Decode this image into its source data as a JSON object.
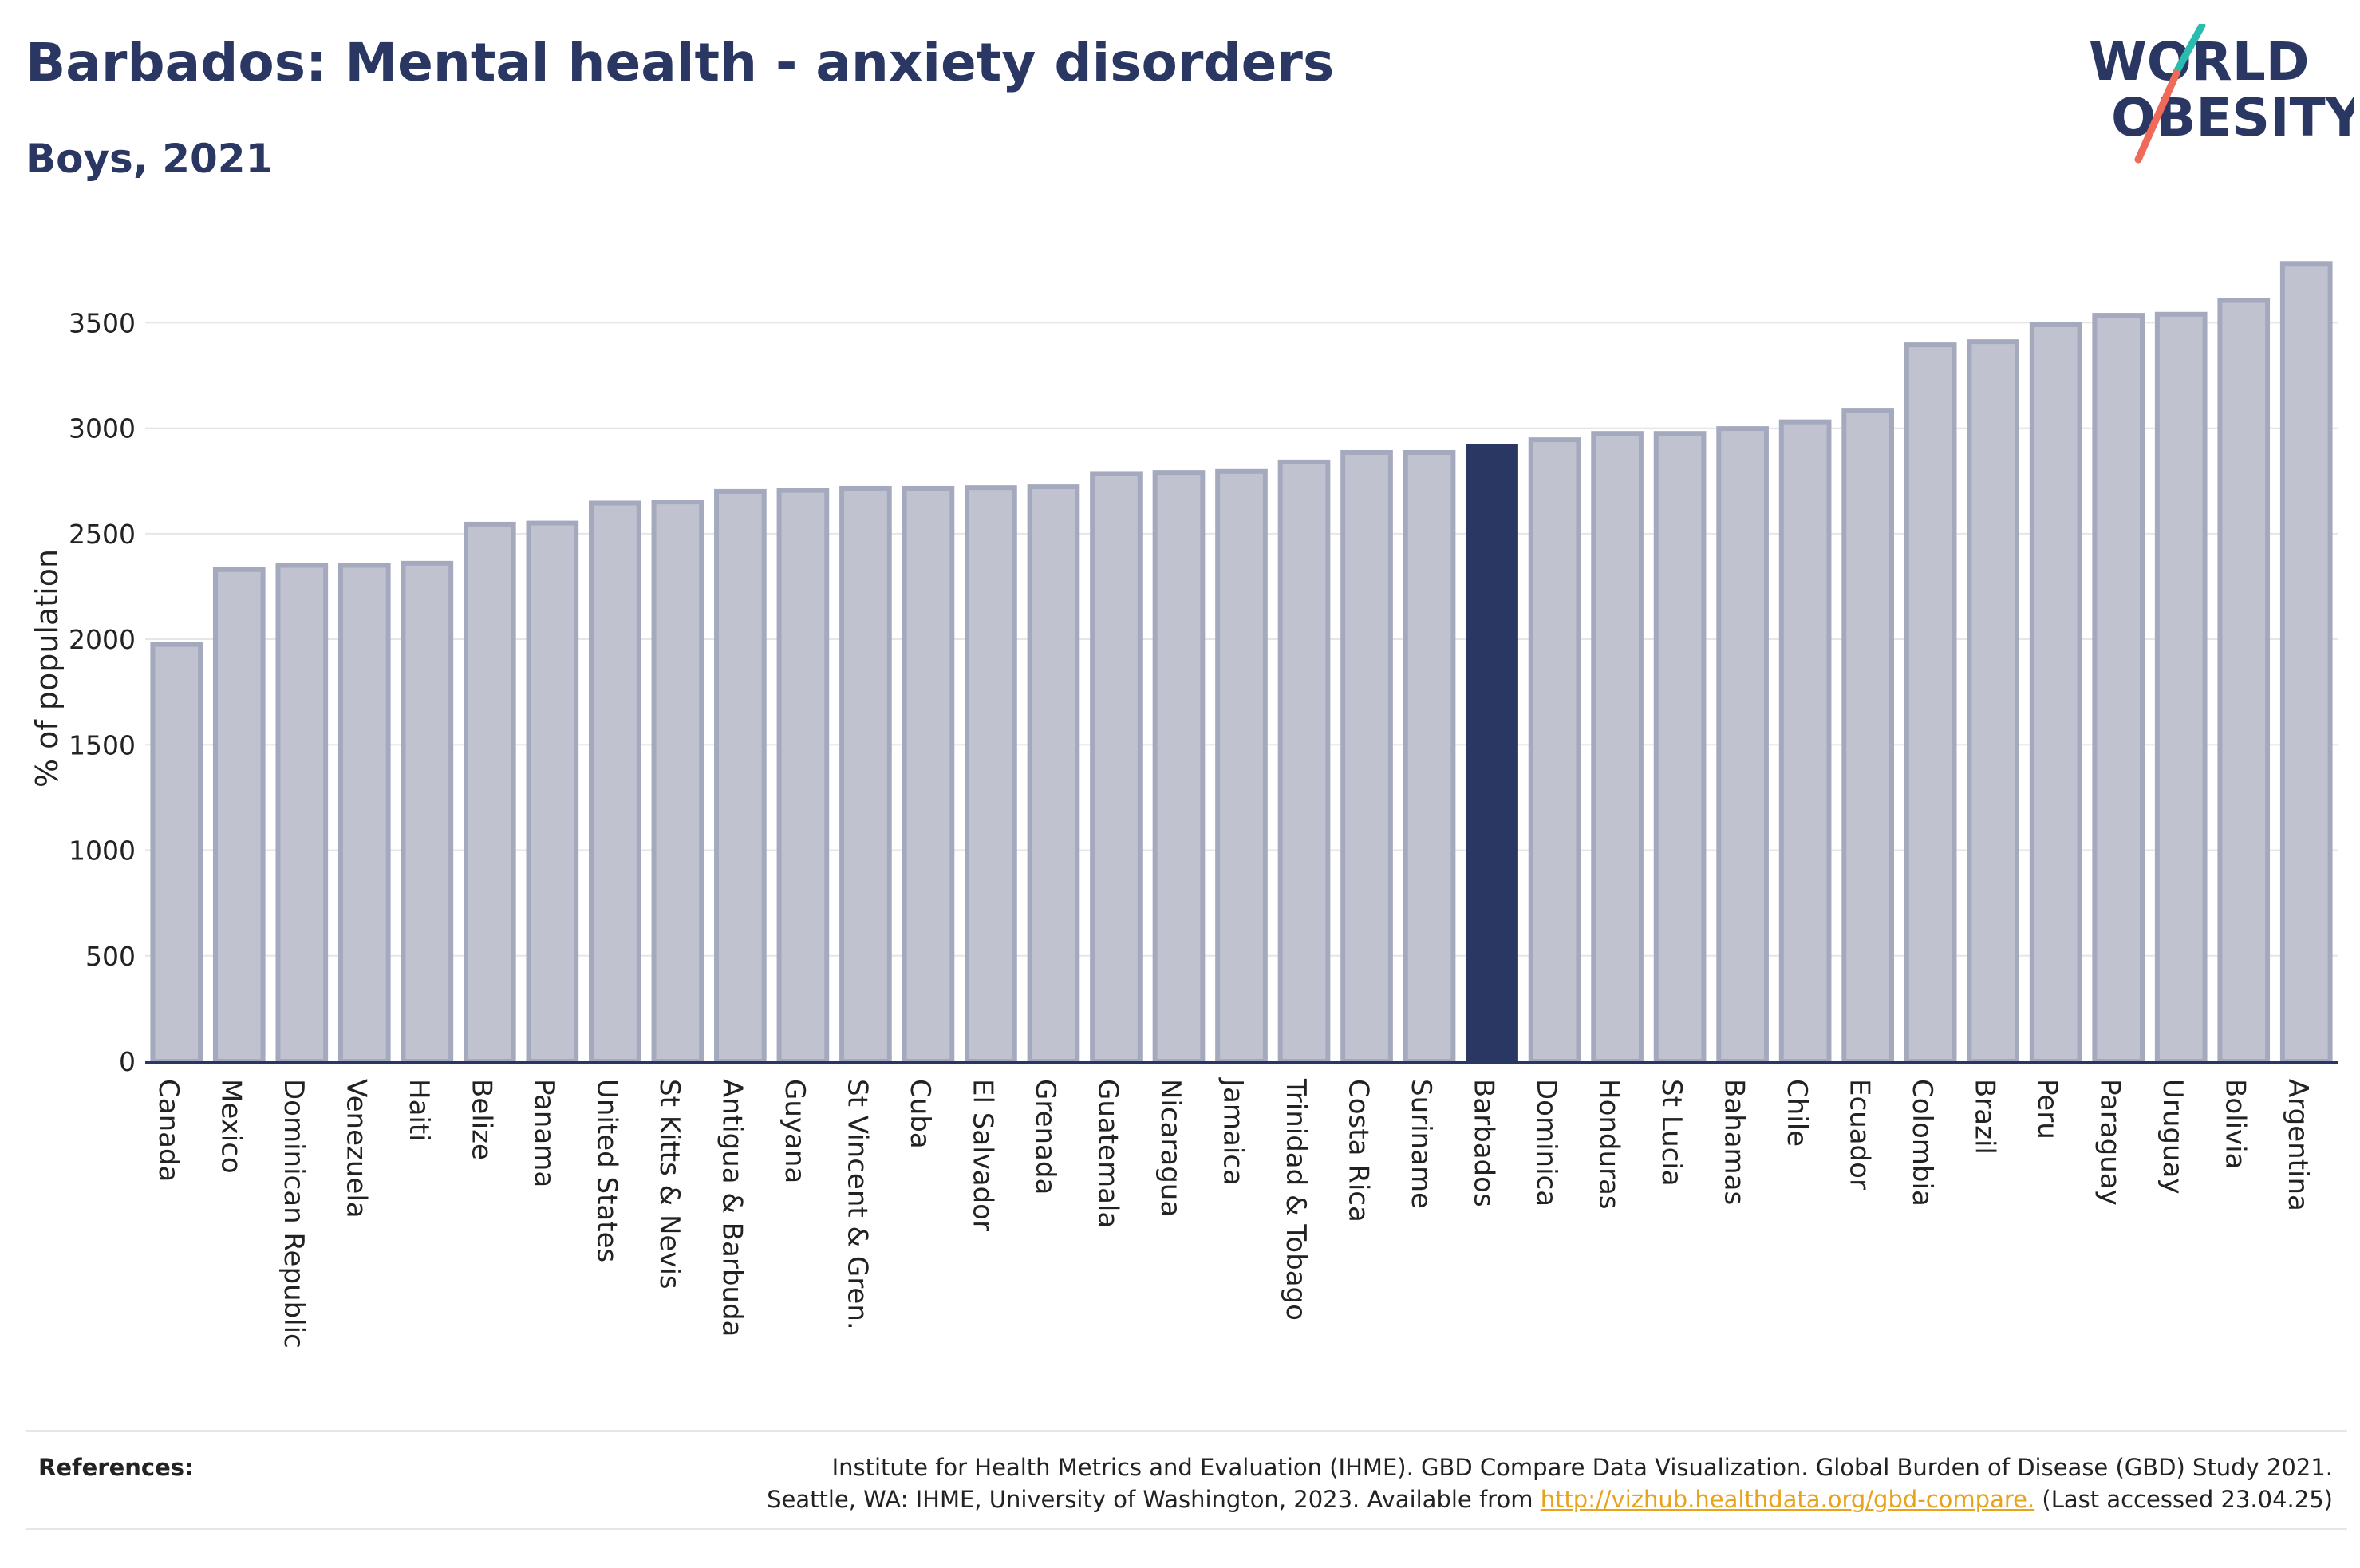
{
  "header": {
    "title": "Barbados: Mental health - anxiety disorders",
    "subtitle": "Boys, 2021"
  },
  "logo": {
    "line1": "WORLD",
    "line2": "OBESITY",
    "text_color": "#2b3763",
    "slash_colors": [
      "#2bbcb0",
      "#f06a5a"
    ]
  },
  "colors": {
    "bar_fill": "#c0c3cf",
    "bar_stroke": "#a5a9be",
    "highlight_fill": "#2b3763",
    "axis": "#2b3763",
    "grid": "#e6e6e6"
  },
  "chart_data": {
    "type": "bar",
    "categories": [
      "Canada",
      "Mexico",
      "Dominican Republic",
      "Venezuela",
      "Haiti",
      "Belize",
      "Panama",
      "United States",
      "St Kitts & Nevis",
      "Antigua & Barbuda",
      "Guyana",
      "St Vincent & Gren.",
      "Cuba",
      "El Salvador",
      "Grenada",
      "Guatemala",
      "Nicaragua",
      "Jamaica",
      "Trinidad & Tobago",
      "Costa Rica",
      "Suriname",
      "Barbados",
      "Dominica",
      "Honduras",
      "St Lucia",
      "Bahamas",
      "Chile",
      "Ecuador",
      "Colombia",
      "Brazil",
      "Peru",
      "Paraguay",
      "Uruguay",
      "Bolivia",
      "Argentina"
    ],
    "values": [
      1975,
      2330,
      2350,
      2350,
      2360,
      2545,
      2550,
      2645,
      2650,
      2700,
      2705,
      2715,
      2715,
      2718,
      2722,
      2785,
      2790,
      2795,
      2840,
      2885,
      2885,
      2915,
      2945,
      2975,
      2975,
      2998,
      3030,
      3085,
      3395,
      3410,
      3490,
      3535,
      3540,
      3605,
      3780
    ],
    "highlight": "Barbados",
    "ylabel": "% of population",
    "ylim": [
      0,
      3800
    ],
    "yticks": [
      0,
      500,
      1000,
      1500,
      2000,
      2500,
      3000,
      3500
    ],
    "grid": true
  },
  "references": {
    "label": "References:",
    "line1": "Institute for Health Metrics and Evaluation (IHME). GBD Compare Data Visualization. Global Burden of Disease (GBD) Study 2021.",
    "line2_prefix": "Seattle, WA: IHME, University of Washington, 2023. Available from ",
    "link": "http://vizhub.healthdata.org/gbd-compare.",
    "line2_suffix": " (Last accessed 23.04.25)"
  }
}
